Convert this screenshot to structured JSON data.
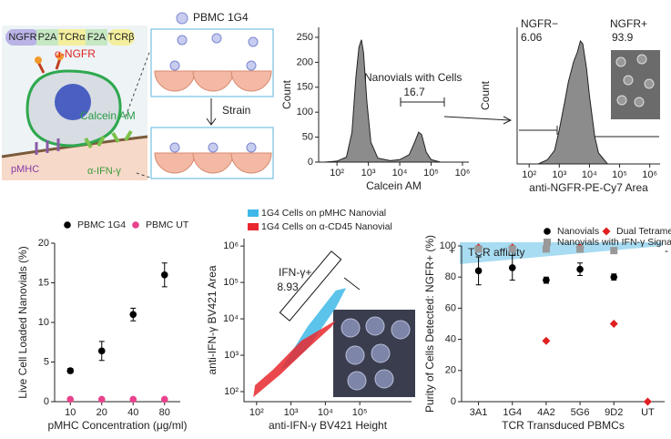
{
  "diagram": {
    "construct": [
      "NGFR",
      "P2A",
      "TCRα",
      "F2A",
      "TCRβ"
    ],
    "anti_ngfr": "α-NGFR",
    "calcein": "Calcein AM",
    "pmhc": "pMHC",
    "anti_ifng": "α-IFN-γ",
    "pbmc": "PBMC 1G4",
    "strain": "Strain"
  },
  "chart_data": [
    {
      "type": "area",
      "xlabel": "Calcein AM",
      "ylabel": "Count",
      "color": "#8c8c8c",
      "xlog": true,
      "xlim": [
        26,
        1600000
      ],
      "ylim": [
        0,
        270
      ],
      "x": [
        40,
        100,
        200,
        300,
        400,
        500,
        600,
        700,
        900,
        1200,
        2000,
        5000,
        10000,
        20000,
        30000,
        40000,
        50000,
        70000,
        100000,
        200000
      ],
      "values": [
        0,
        2,
        10,
        60,
        170,
        230,
        245,
        220,
        120,
        40,
        8,
        3,
        5,
        15,
        40,
        60,
        55,
        20,
        5,
        0
      ],
      "xticks": [
        {
          "value": 100,
          "label": "10²"
        },
        {
          "value": 1000,
          "label": "10³"
        },
        {
          "value": 10000,
          "label": "10⁴"
        },
        {
          "value": 100000,
          "label": "10⁵"
        },
        {
          "value": 1000000,
          "label": "10⁶"
        }
      ],
      "yticks": [
        0,
        50,
        100,
        150,
        200,
        250
      ],
      "annotations": [
        "Nanovials with Cells",
        "16.7"
      ]
    },
    {
      "type": "area",
      "xlabel": "anti-NGFR-PE-Cy7 Area",
      "ylabel": "Count",
      "color": "#8c8c8c",
      "xlog": true,
      "xlim": [
        40,
        2200000
      ],
      "ylim": [
        0,
        100
      ],
      "x": [
        200,
        400,
        700,
        1000,
        1500,
        2000,
        3000,
        4000,
        5000,
        6000,
        8000,
        10000,
        15000,
        20000,
        40000
      ],
      "values": [
        0,
        3,
        10,
        25,
        45,
        60,
        75,
        82,
        90,
        88,
        70,
        50,
        20,
        8,
        0
      ],
      "xticks": [
        {
          "value": 100,
          "label": "10²"
        },
        {
          "value": 1000,
          "label": "10³"
        },
        {
          "value": 10000,
          "label": "10⁴"
        },
        {
          "value": 100000,
          "label": "10⁵"
        },
        {
          "value": 1000000,
          "label": "10⁶"
        }
      ],
      "annotations": [
        "NGFR−",
        "6.06",
        "NGFR+",
        "93.9"
      ]
    },
    {
      "type": "dot",
      "xlabel": "pMHC Concentration (μg/ml)",
      "ylabel": "Live Cell Loaded Nanovials (%)",
      "categories": [
        "10",
        "20",
        "40",
        "80"
      ],
      "ylim": [
        0,
        20
      ],
      "yticks": [
        0,
        5,
        10,
        15,
        20
      ],
      "series": [
        {
          "name": "PBMC 1G4",
          "color": "#000000",
          "marker": "circle",
          "values": [
            3.9,
            6.4,
            11,
            16
          ],
          "errors": [
            0.3,
            1.2,
            0.8,
            1.5
          ]
        },
        {
          "name": "PBMC UT",
          "color": "#e8428c",
          "marker": "circle",
          "values": [
            0.3,
            0.3,
            0.3,
            0.3
          ]
        }
      ]
    },
    {
      "type": "scatter",
      "xlabel": "anti-IFN-γ BV421 Height",
      "ylabel": "anti-IFN-γ BV421 Area",
      "xlog": true,
      "ylog": true,
      "xlim": [
        43,
        3200000
      ],
      "ylim": [
        53,
        1600000
      ],
      "xticks": [
        {
          "value": 100,
          "label": "10²"
        },
        {
          "value": 1000,
          "label": "10³"
        },
        {
          "value": 10000,
          "label": "10⁴"
        },
        {
          "value": 100000,
          "label": "10⁵"
        }
      ],
      "yticks": [
        {
          "value": 100,
          "label": "10²"
        },
        {
          "value": 1000,
          "label": "10³"
        },
        {
          "value": 10000,
          "label": "10⁴"
        },
        {
          "value": 100000,
          "label": "10⁵"
        },
        {
          "value": 1000000,
          "label": "10⁶"
        }
      ],
      "series": [
        {
          "name": "1G4 Cells on pMHC Nanovial",
          "color": "#3fb8e8"
        },
        {
          "name": "1G4 Cells on α-CD45 Nanovial",
          "color": "#e8282e"
        }
      ],
      "annotations": [
        "IFN-γ+",
        "8.93"
      ]
    },
    {
      "type": "dot",
      "xlabel": "TCR Transduced PBMCs",
      "ylabel": "Purity of Cells Detected: NGFR+ (%)",
      "categories": [
        "3A1",
        "1G4",
        "4A2",
        "5G6",
        "9D2",
        "UT"
      ],
      "ylim": [
        0,
        100
      ],
      "yticks": [
        0,
        20,
        40,
        60,
        80,
        100
      ],
      "series": [
        {
          "name": "Nanovials",
          "color": "#000000",
          "marker": "circle",
          "values": [
            84,
            86,
            78,
            85,
            80,
            null
          ],
          "errors": [
            9,
            8,
            2,
            4,
            2,
            null
          ]
        },
        {
          "name": "Dual Tetramer",
          "color": "#e02020",
          "marker": "diamond",
          "values": [
            99,
            99,
            39,
            99,
            50,
            0
          ]
        },
        {
          "name": "Nanovials with IFN-γ Signal",
          "color": "#999999",
          "marker": "square",
          "values": [
            98,
            98,
            98,
            98,
            97,
            null
          ]
        }
      ],
      "annotations": [
        "TCR affinity",
        "+",
        "-"
      ]
    }
  ]
}
